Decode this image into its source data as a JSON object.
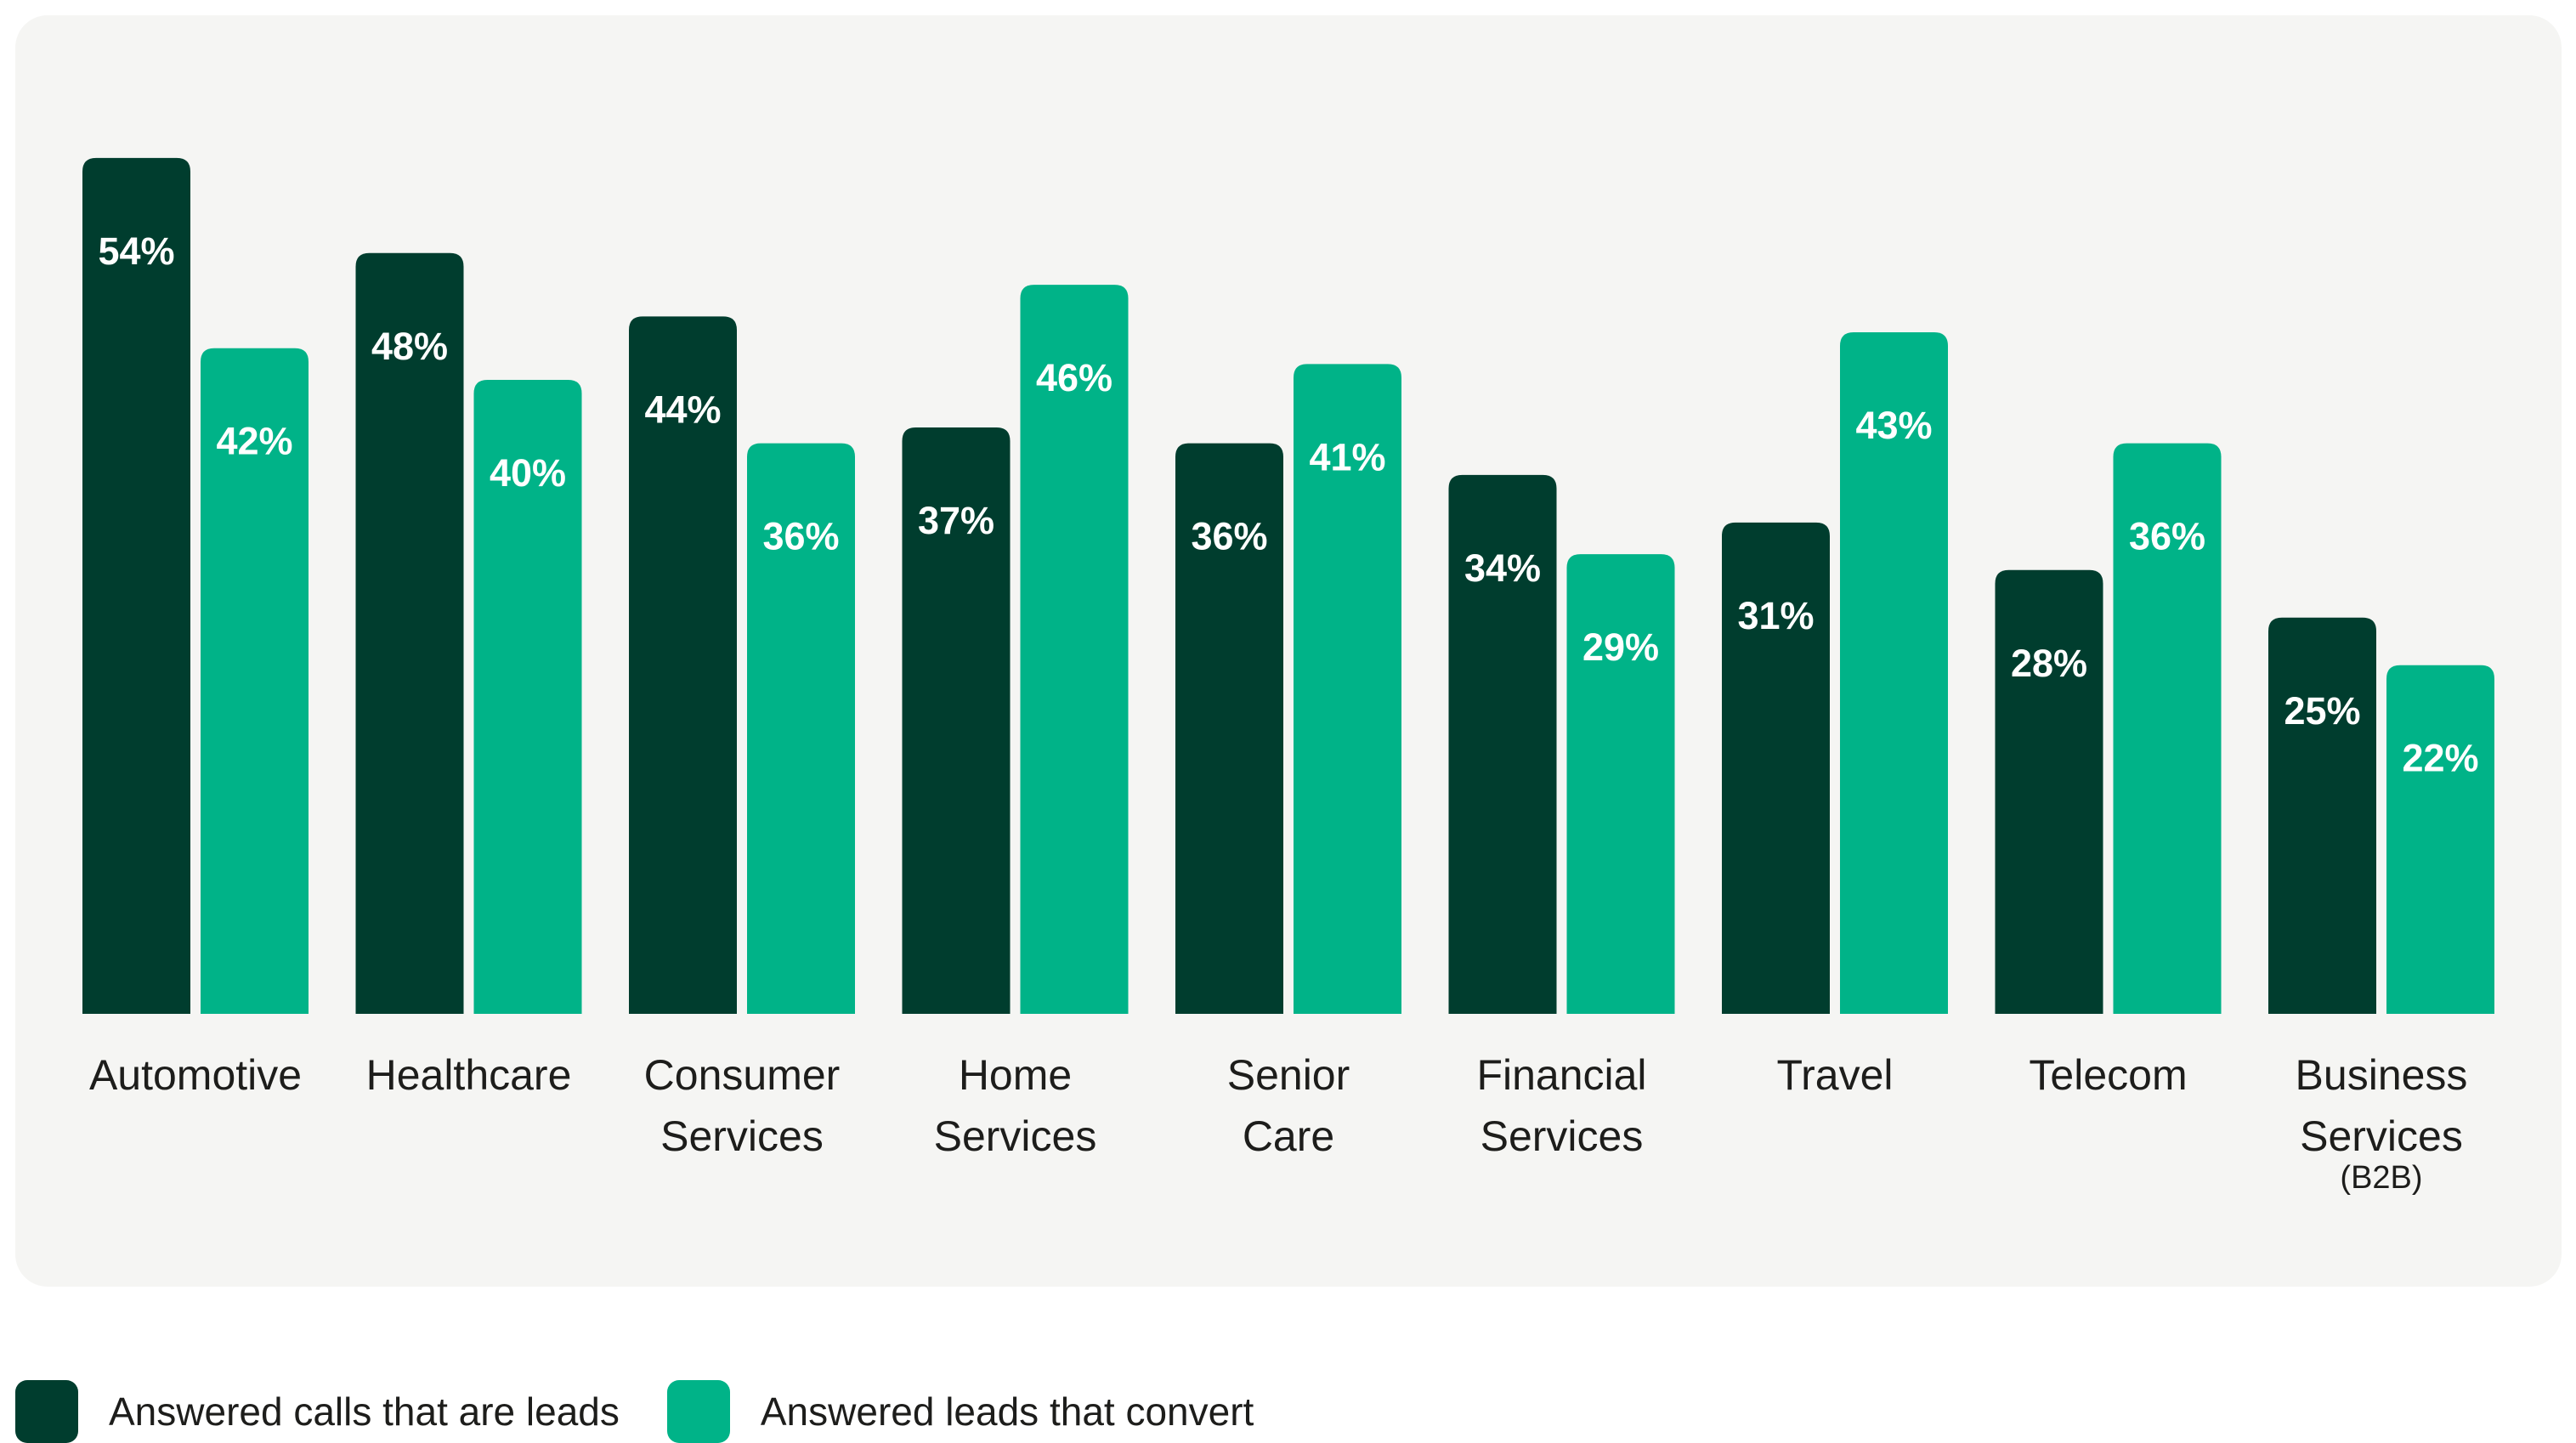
{
  "colors": {
    "leads": "#003d2e",
    "convert": "#00b388",
    "panel": "#f5f5f3",
    "text": "#1d1d1b"
  },
  "chart_data": {
    "type": "bar",
    "title": "",
    "xlabel": "",
    "ylabel": "",
    "ylim": [
      0,
      60
    ],
    "grid": false,
    "legend_position": "bottom-left",
    "categories": [
      [
        "Automotive"
      ],
      [
        "Healthcare"
      ],
      [
        "Consumer",
        "Services"
      ],
      [
        "Home",
        "Services"
      ],
      [
        "Senior",
        "Care"
      ],
      [
        "Financial",
        "Services"
      ],
      [
        "Travel"
      ],
      [
        "Telecom"
      ],
      [
        "Business",
        "Services",
        "(B2B)"
      ]
    ],
    "series": [
      {
        "name": "Answered calls that are leads",
        "values": [
          54,
          48,
          44,
          37,
          36,
          34,
          31,
          28,
          25
        ],
        "labels": [
          "54%",
          "48%",
          "44%",
          "37%",
          "36%",
          "34%",
          "31%",
          "28%",
          "25%"
        ]
      },
      {
        "name": "Answered leads that convert",
        "values": [
          42,
          40,
          36,
          46,
          41,
          29,
          43,
          36,
          22
        ],
        "labels": [
          "42%",
          "40%",
          "36%",
          "46%",
          "41%",
          "29%",
          "43%",
          "36%",
          "22%"
        ]
      }
    ]
  }
}
